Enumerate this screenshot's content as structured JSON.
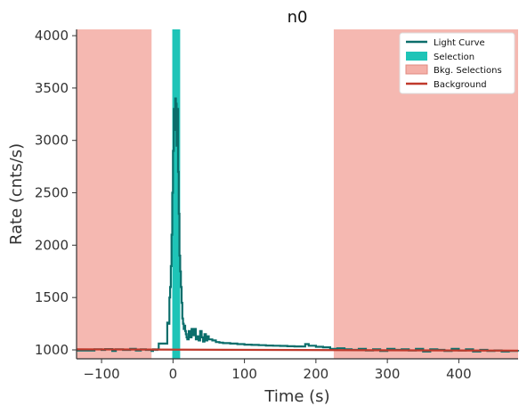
{
  "chart_data": {
    "type": "line",
    "title": "n0",
    "xlabel": "Time (s)",
    "ylabel": "Rate (cnts/s)",
    "xlim": [
      -135,
      483
    ],
    "ylim": [
      915,
      4060
    ],
    "xticks": [
      -100,
      0,
      100,
      200,
      300,
      400
    ],
    "xtick_labels": [
      "−100",
      "0",
      "100",
      "200",
      "300",
      "400"
    ],
    "yticks": [
      1000,
      1500,
      2000,
      2500,
      3000,
      3500,
      4000
    ],
    "ytick_labels": [
      "1000",
      "1500",
      "2000",
      "2500",
      "3000",
      "3500",
      "4000"
    ],
    "grid": false,
    "legend_position": "top-right",
    "colors": {
      "light_curve": "#0b6e6b",
      "selection": "#1ec4b7",
      "bkg_selection": "#f4b0a8",
      "background": "#c0392b"
    },
    "series": [
      {
        "name": "Light Curve",
        "type": "step",
        "x": [
          -135,
          -110,
          -100,
          -95,
          -85,
          -80,
          -70,
          -60,
          -52,
          -45,
          -38,
          -30,
          -28,
          -25,
          -22,
          -20,
          -15,
          -10,
          -8,
          -6,
          -5,
          -4,
          -3,
          -2,
          -1,
          0,
          1,
          2,
          3,
          4,
          5,
          6,
          7,
          8,
          9,
          10,
          11,
          12,
          13,
          14,
          15,
          16,
          17,
          18,
          19,
          20,
          22,
          24,
          26,
          28,
          30,
          32,
          34,
          36,
          38,
          40,
          42,
          44,
          46,
          48,
          50,
          55,
          60,
          65,
          70,
          80,
          90,
          100,
          110,
          120,
          130,
          140,
          150,
          160,
          170,
          180,
          185,
          190,
          200,
          210,
          220,
          230,
          240,
          250,
          260,
          270,
          280,
          290,
          300,
          310,
          320,
          330,
          340,
          350,
          360,
          370,
          380,
          390,
          400,
          410,
          420,
          430,
          440,
          450,
          460,
          470,
          483
        ],
        "y": [
          995,
          1005,
          1000,
          1008,
          990,
          1005,
          1000,
          1010,
          995,
          1005,
          1000,
          990,
          1005,
          1000,
          1005,
          1060,
          1060,
          1060,
          1260,
          1250,
          1500,
          1600,
          1800,
          2100,
          2500,
          2900,
          3300,
          3100,
          3400,
          3350,
          2950,
          3300,
          2700,
          2300,
          1900,
          1750,
          1600,
          1450,
          1300,
          1250,
          1200,
          1230,
          1180,
          1150,
          1120,
          1100,
          1180,
          1120,
          1200,
          1140,
          1200,
          1100,
          1130,
          1090,
          1180,
          1120,
          1080,
          1150,
          1090,
          1130,
          1100,
          1090,
          1075,
          1070,
          1065,
          1060,
          1055,
          1050,
          1048,
          1045,
          1042,
          1040,
          1038,
          1035,
          1033,
          1032,
          1055,
          1040,
          1030,
          1025,
          1010,
          1015,
          1005,
          1000,
          1010,
          995,
          1005,
          990,
          1010,
          1000,
          1005,
          995,
          1010,
          985,
          1005,
          1000,
          990,
          1010,
          995,
          1005,
          985,
          1000,
          990,
          995,
          985,
          990,
          985
        ]
      },
      {
        "name": "Selection",
        "type": "span",
        "x": [
          -1,
          10
        ]
      },
      {
        "name": "Bkg. Selections",
        "type": "span",
        "ranges": [
          [
            -135,
            -30
          ],
          [
            225,
            483
          ]
        ]
      },
      {
        "name": "Background",
        "type": "line",
        "x": [
          -135,
          483
        ],
        "y": [
          1005,
          993
        ]
      }
    ]
  }
}
